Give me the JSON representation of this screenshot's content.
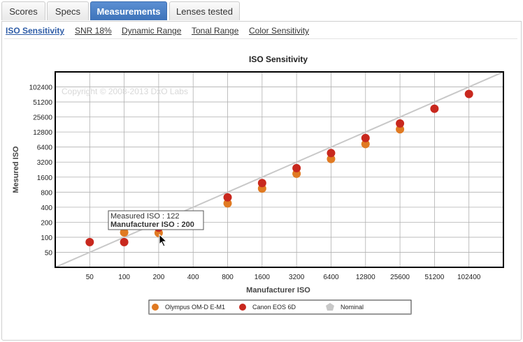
{
  "tabs": [
    {
      "label": "Scores"
    },
    {
      "label": "Specs"
    },
    {
      "label": "Measurements"
    },
    {
      "label": "Lenses tested"
    }
  ],
  "subnav": [
    {
      "label": "ISO Sensitivity"
    },
    {
      "label": "SNR 18%"
    },
    {
      "label": "Dynamic Range"
    },
    {
      "label": "Tonal Range"
    },
    {
      "label": "Color Sensitivity"
    }
  ],
  "tooltip": {
    "line1": "Measured ISO : 122",
    "line2": "Manufacturer ISO : 200"
  },
  "chart_data": {
    "type": "scatter",
    "title": "ISO Sensitivity",
    "xlabel": "Manufacturer ISO",
    "ylabel": "Mesured ISO",
    "watermark": "Copyright © 2008-2013 DxO Labs",
    "x_scale": "log2",
    "y_scale": "log2",
    "x_ticks": [
      "50",
      "100",
      "200",
      "400",
      "800",
      "1600",
      "3200",
      "6400",
      "12800",
      "25600",
      "51200",
      "102400"
    ],
    "y_ticks": [
      "50",
      "100",
      "200",
      "400",
      "800",
      "1600",
      "3200",
      "6400",
      "12800",
      "25600",
      "51200",
      "102400"
    ],
    "xlim": [
      25,
      204800
    ],
    "ylim": [
      25,
      204800
    ],
    "grid": true,
    "legend_position": "bottom",
    "series": [
      {
        "name": "Olympus OM-D E-M1",
        "color": "#e07a22",
        "marker": "circle",
        "points": [
          [
            100,
            125
          ],
          [
            200,
            122
          ],
          [
            800,
            477
          ],
          [
            1600,
            945
          ],
          [
            3200,
            1870
          ],
          [
            6400,
            3700
          ],
          [
            12800,
            7350
          ],
          [
            25600,
            14500
          ]
        ]
      },
      {
        "name": "Canon EOS 6D",
        "color": "#c8281e",
        "marker": "circle",
        "points": [
          [
            50,
            80
          ],
          [
            100,
            80
          ],
          [
            200,
            155
          ],
          [
            800,
            630
          ],
          [
            1600,
            1220
          ],
          [
            3200,
            2420
          ],
          [
            6400,
            4850
          ],
          [
            12800,
            9700
          ],
          [
            25600,
            19000
          ],
          [
            51200,
            37500
          ],
          [
            102400,
            74000
          ]
        ]
      },
      {
        "name": "Nominal",
        "color": "#c8c8c8",
        "marker": "pentagon",
        "line": [
          [
            25,
            25
          ],
          [
            204800,
            204800
          ]
        ]
      }
    ]
  }
}
